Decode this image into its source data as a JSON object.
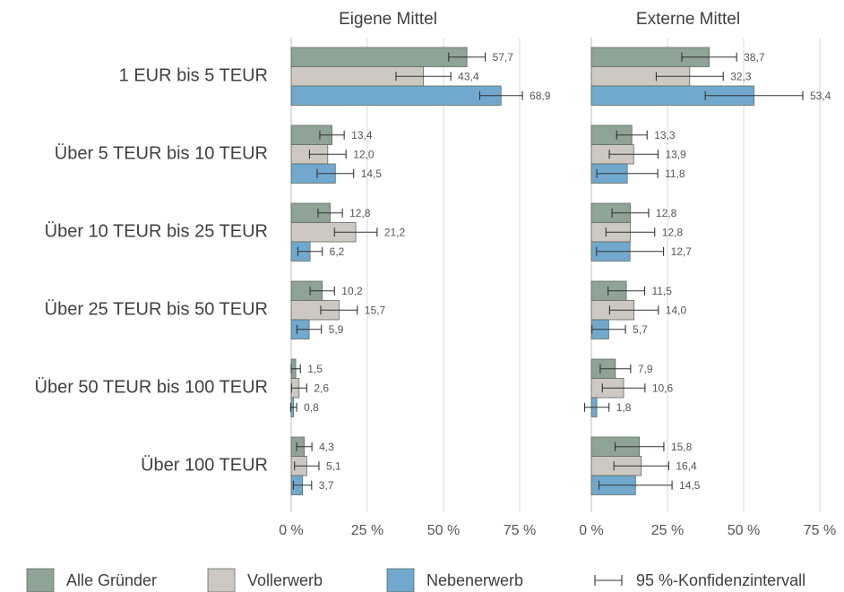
{
  "chart_data": {
    "type": "bar",
    "orientation": "horizontal",
    "categories": [
      "1 EUR bis 5 TEUR",
      "Über 5 TEUR bis 10 TEUR",
      "Über 10 TEUR bis 25 TEUR",
      "Über 25 TEUR bis 50 TEUR",
      "Über 50 TEUR bis 100 TEUR",
      "Über 100 TEUR"
    ],
    "legend": [
      {
        "name": "Alle Gründer",
        "color": "#8fa396"
      },
      {
        "name": "Vollerwerb",
        "color": "#cdc8c2"
      },
      {
        "name": "Nebenerwerb",
        "color": "#70a9cd"
      }
    ],
    "error_label": "95 %-Konfidenzintervall",
    "xlim": [
      0,
      80
    ],
    "xticks": [
      {
        "value": 0,
        "label": "0 %"
      },
      {
        "value": 25,
        "label": "25 %"
      },
      {
        "value": 50,
        "label": "50 %"
      },
      {
        "value": 75,
        "label": "75 %"
      }
    ],
    "grid": true,
    "panels": [
      {
        "title": "Eigene Mittel",
        "series": [
          {
            "values": [
              57.7,
              13.4,
              12.8,
              10.2,
              1.5,
              4.3
            ],
            "errors": [
              6,
              4,
              4,
              4,
              1.5,
              2.5
            ],
            "value_labels": [
              "57,7",
              "13,4",
              "12,8",
              "10,2",
              "1,5",
              "4,3"
            ]
          },
          {
            "values": [
              43.4,
              12.0,
              21.2,
              15.7,
              2.6,
              5.1
            ],
            "errors": [
              9,
              6,
              7,
              6,
              2.5,
              4
            ],
            "value_labels": [
              "43,4",
              "12,0",
              "21,2",
              "15,7",
              "2,6",
              "5,1"
            ]
          },
          {
            "values": [
              68.9,
              14.5,
              6.2,
              5.9,
              0.8,
              3.7
            ],
            "errors": [
              7,
              6,
              4,
              4,
              1,
              3
            ],
            "value_labels": [
              "68,9",
              "14,5",
              "6,2",
              "5,9",
              "0,8",
              "3,7"
            ]
          }
        ]
      },
      {
        "title": "Externe Mittel",
        "series": [
          {
            "values": [
              38.7,
              13.3,
              12.8,
              11.5,
              7.9,
              15.8
            ],
            "errors": [
              9,
              5,
              6,
              6,
              5,
              8
            ],
            "value_labels": [
              "38,7",
              "13,3",
              "12,8",
              "11,5",
              "7,9",
              "15,8"
            ]
          },
          {
            "values": [
              32.3,
              13.9,
              12.8,
              14.0,
              10.6,
              16.4
            ],
            "errors": [
              11,
              8,
              8,
              8,
              7,
              9
            ],
            "value_labels": [
              "32,3",
              "13,9",
              "12,8",
              "14,0",
              "10,6",
              "16,4"
            ]
          },
          {
            "values": [
              53.4,
              11.8,
              12.7,
              5.7,
              1.8,
              14.5
            ],
            "errors": [
              16,
              10,
              11,
              5.5,
              4,
              12
            ],
            "value_labels": [
              "53,4",
              "11,8",
              "12,7",
              "5,7",
              "1,8",
              "14,5"
            ]
          }
        ]
      }
    ]
  }
}
